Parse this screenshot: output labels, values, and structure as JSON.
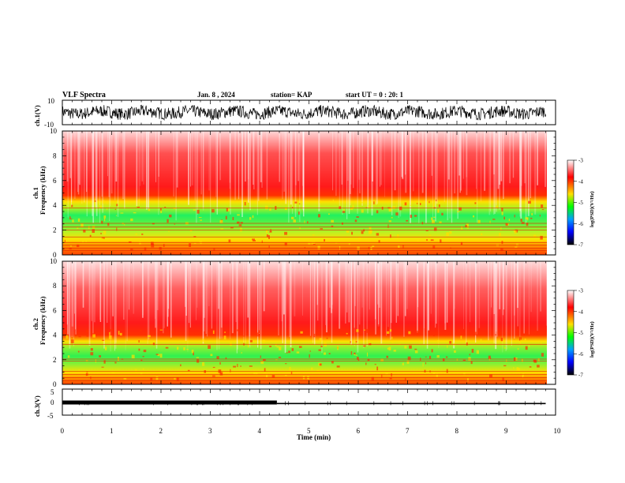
{
  "header": {
    "title": "VLF Spectra",
    "date": "Jan. 8 , 2024",
    "station": "station= KAP",
    "start": "start UT =  0 : 20: 1"
  },
  "colorbar": {
    "label": "log(PSD)(V²/Hz)",
    "ticks": [
      "-3",
      "-4",
      "-5",
      "-6",
      "-7"
    ],
    "colors": [
      "#ffffff",
      "#ff0000",
      "#ffe000",
      "#00ff00",
      "#00a0ff",
      "#0000ff",
      "#000000"
    ]
  },
  "chart_data": [
    {
      "type": "line",
      "name": "ch1-waveform",
      "ylabel": "ch.1(V)",
      "ylim": [
        -10,
        10
      ],
      "yticks": [
        "10",
        "-10"
      ],
      "xlim": [
        0,
        10
      ],
      "description_values": "noisy waveform with amplitude about ±5 V"
    },
    {
      "type": "heatmap",
      "name": "ch1-spectrogram",
      "ylabel": "ch.1\nFrequency (kHz)",
      "ylim": [
        0,
        10
      ],
      "yticks": [
        "0",
        "2",
        "4",
        "6",
        "8",
        "10"
      ],
      "xlim": [
        0,
        10
      ],
      "bands_khz": [
        {
          "from": 0.0,
          "to": 1.0,
          "level": "yellow-red"
        },
        {
          "from": 1.0,
          "to": 4.0,
          "level": "green-yellow"
        },
        {
          "from": 4.0,
          "to": 5.0,
          "level": "red-yellow"
        },
        {
          "from": 5.0,
          "to": 7.5,
          "level": "red"
        },
        {
          "from": 7.5,
          "to": 10.0,
          "level": "red-white"
        }
      ]
    },
    {
      "type": "heatmap",
      "name": "ch2-spectrogram",
      "ylabel": "ch.2\nFrequency (kHz)",
      "ylim": [
        0,
        10
      ],
      "yticks": [
        "0",
        "2",
        "4",
        "6",
        "8",
        "10"
      ],
      "xlim": [
        0,
        10
      ],
      "bands_khz": [
        {
          "from": 0.0,
          "to": 1.0,
          "level": "yellow-red"
        },
        {
          "from": 1.0,
          "to": 3.5,
          "level": "green-yellow"
        },
        {
          "from": 3.5,
          "to": 4.5,
          "level": "red-yellow"
        },
        {
          "from": 4.5,
          "to": 7.5,
          "level": "red"
        },
        {
          "from": 7.5,
          "to": 10.0,
          "level": "red-white"
        }
      ]
    },
    {
      "type": "line",
      "name": "ch3-signal",
      "ylabel": "ch.3(V)",
      "ylim": [
        -5,
        5
      ],
      "yticks": [
        "5",
        "0",
        "-5"
      ],
      "xlim": [
        0,
        10
      ],
      "segments": [
        {
          "x_from": 0.0,
          "x_to": 4.35,
          "y": 0.6,
          "thickness": "thick"
        },
        {
          "x_from": 4.35,
          "x_to": 9.8,
          "y": 0.2,
          "thickness": "thin"
        }
      ]
    }
  ],
  "xaxis": {
    "label": "Time (min)",
    "ticks": [
      "0",
      "1",
      "2",
      "3",
      "4",
      "5",
      "6",
      "7",
      "8",
      "9",
      "10"
    ]
  }
}
